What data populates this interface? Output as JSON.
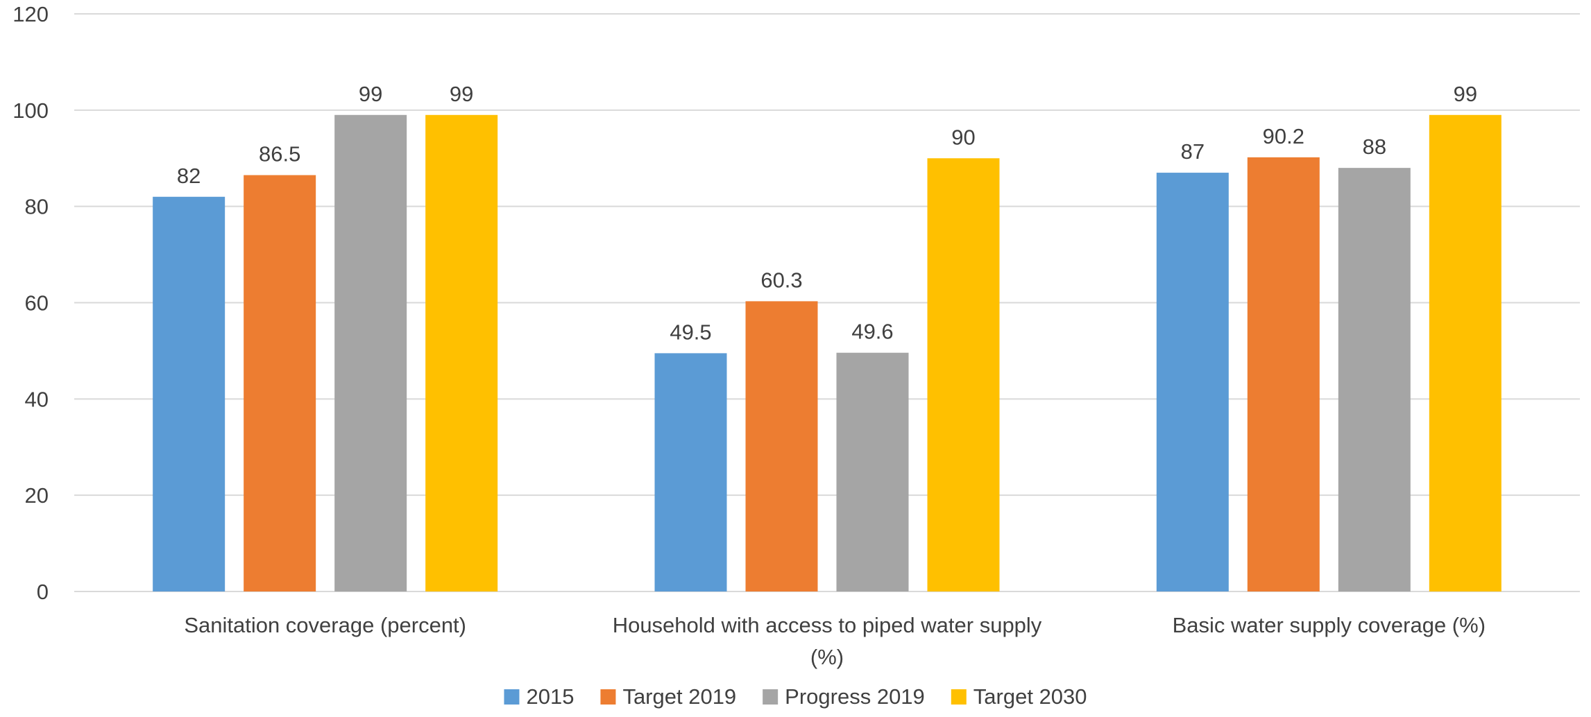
{
  "chart_data": {
    "type": "bar",
    "title": "",
    "xlabel": "",
    "ylabel": "",
    "ylim": [
      0,
      120
    ],
    "y_ticks": [
      0,
      20,
      40,
      60,
      80,
      100,
      120
    ],
    "grid": true,
    "legend_position": "bottom",
    "categories": [
      [
        "Sanitation coverage (percent)"
      ],
      [
        "Household with access to piped water supply",
        "(%)"
      ],
      [
        "Basic water supply coverage (%)"
      ]
    ],
    "series": [
      {
        "name": "2015",
        "color": "#5B9BD5",
        "values": [
          82,
          49.5,
          87
        ],
        "labels": [
          "82",
          "49.5",
          "87"
        ]
      },
      {
        "name": "Target 2019",
        "color": "#ED7D31",
        "values": [
          86.5,
          60.3,
          90.2
        ],
        "labels": [
          "86.5",
          "60.3",
          "90.2"
        ]
      },
      {
        "name": "Progress 2019",
        "color": "#A5A5A5",
        "values": [
          99,
          49.6,
          88
        ],
        "labels": [
          "99",
          "49.6",
          "88"
        ]
      },
      {
        "name": "Target 2030",
        "color": "#FFC000",
        "values": [
          99,
          90,
          99
        ],
        "labels": [
          "99",
          "90",
          "99"
        ]
      }
    ]
  }
}
